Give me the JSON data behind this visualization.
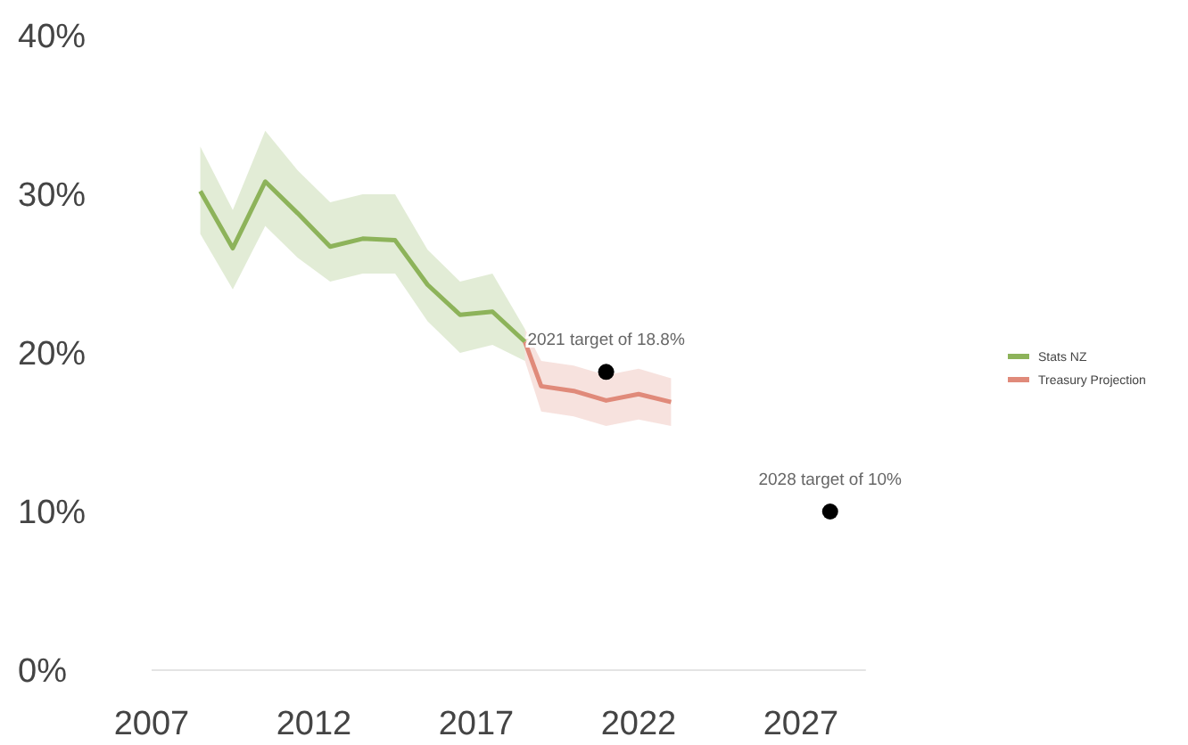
{
  "chart_data": {
    "type": "line",
    "xlim": [
      2007,
      2029
    ],
    "xticks": [
      2007,
      2012,
      2017,
      2022,
      2027
    ],
    "ylim": [
      0,
      40
    ],
    "yticks": [
      {
        "value": 0,
        "label": "0%"
      },
      {
        "value": 10,
        "label": "10%"
      },
      {
        "value": 20,
        "label": "20%"
      },
      {
        "value": 30,
        "label": "30%"
      },
      {
        "value": 40,
        "label": "40%"
      }
    ],
    "grid": false,
    "legend": "right",
    "series": [
      {
        "name": "Stats NZ",
        "color": "#8db35a",
        "x": [
          2008.5,
          2009.5,
          2010.5,
          2011.5,
          2012.5,
          2013.5,
          2014.5,
          2015.5,
          2016.5,
          2017.5,
          2018.5
        ],
        "values": [
          30.2,
          26.6,
          30.8,
          28.8,
          26.7,
          27.2,
          27.1,
          24.3,
          22.4,
          22.6,
          20.7
        ],
        "lower": [
          27.5,
          24,
          28,
          26,
          24.5,
          25,
          25,
          22,
          20,
          20.5,
          19.5
        ],
        "upper": [
          33,
          29,
          34,
          31.5,
          29.5,
          30,
          30,
          26.5,
          24.5,
          25,
          21.5
        ]
      },
      {
        "name": "Treasury Projection",
        "color": "#e08a7a",
        "x": [
          2018.5,
          2019,
          2020,
          2021,
          2022,
          2023
        ],
        "values": [
          20.7,
          17.9,
          17.6,
          17.0,
          17.4,
          16.9
        ],
        "lower": [
          19.5,
          16.3,
          16,
          15.4,
          15.8,
          15.4
        ],
        "upper": [
          21.5,
          19.5,
          19.2,
          18.6,
          19,
          18.4
        ]
      },
      {
        "type": "scatter",
        "color": "#000000",
        "marker": "circle",
        "x": [
          2021,
          2027.9
        ],
        "values": [
          18.8,
          10
        ]
      }
    ],
    "annotations": [
      {
        "text": "2021 target of 18.8%",
        "x": 2021,
        "y": 18.8
      },
      {
        "text": "2028 target of 10%",
        "x": 2027.9,
        "y": 10
      }
    ]
  }
}
